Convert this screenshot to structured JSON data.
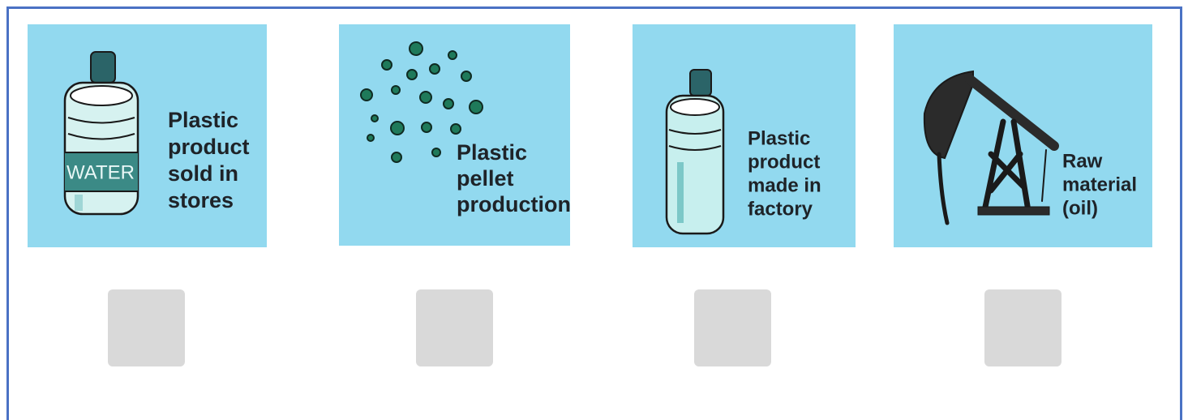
{
  "cards": [
    {
      "label_lines": [
        "Plastic",
        "product",
        "sold in",
        "stores"
      ],
      "bottle_text": "WATER"
    },
    {
      "label_lines": [
        "Plastic",
        "pellet",
        "production"
      ]
    },
    {
      "label_lines": [
        "Plastic",
        "product",
        "made in",
        "factory"
      ]
    },
    {
      "label_lines": [
        "Raw",
        "material",
        "(oil)"
      ]
    }
  ]
}
